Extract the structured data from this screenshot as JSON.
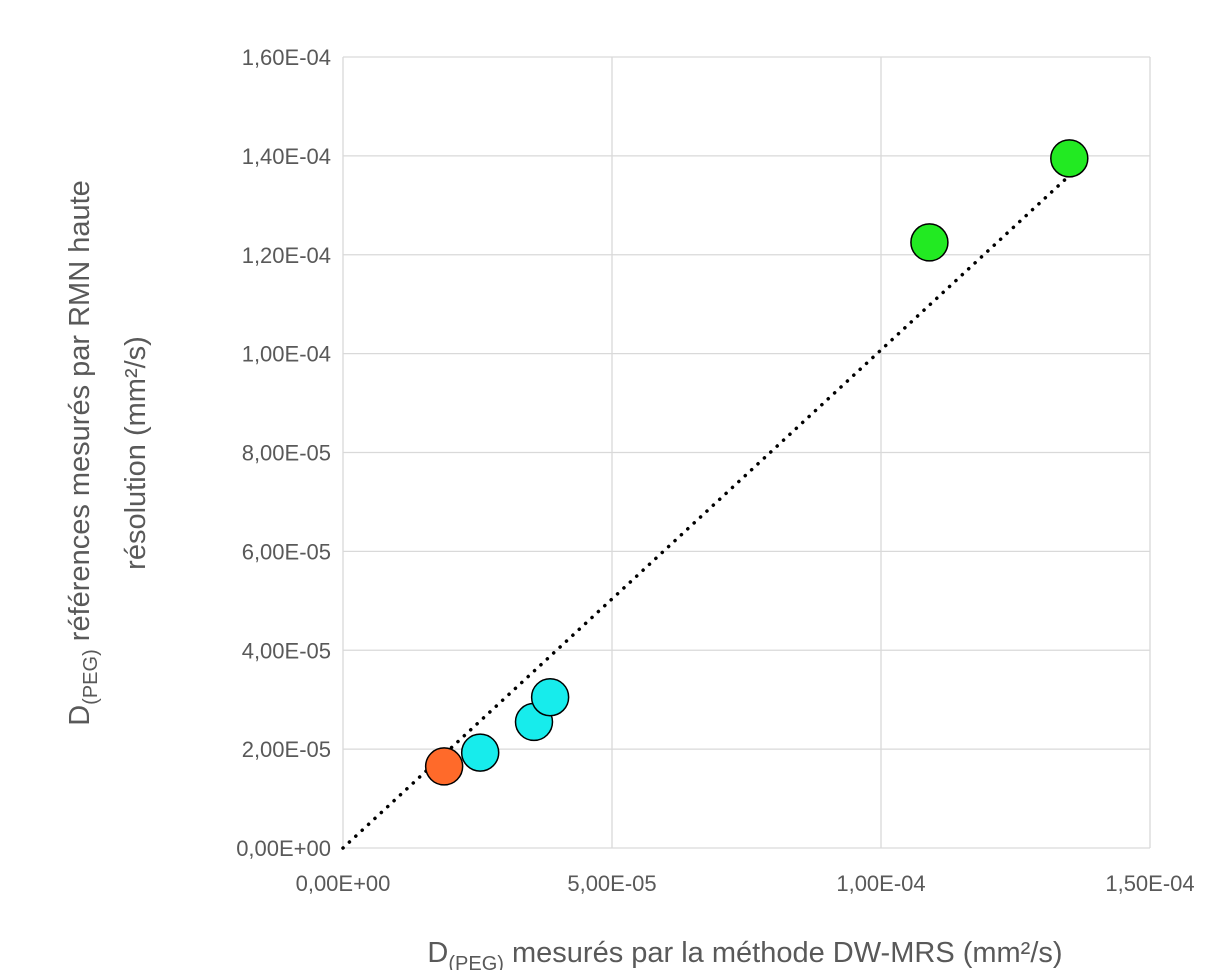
{
  "chart_data": {
    "type": "scatter",
    "xlabel": {
      "prefix": "D",
      "sub": "(PEG)",
      "rest": " mesurés par la méthode DW-MRS (mm²/s)"
    },
    "ylabel": {
      "line1_prefix": "D",
      "line1_sub": "(PEG)",
      "line1_rest": " références mesurés par RMN haute",
      "line2": "résolution (mm²/s)"
    },
    "xlim": [
      0,
      0.00015
    ],
    "ylim": [
      0,
      0.00016
    ],
    "x_ticks": [
      0,
      5e-05,
      0.0001,
      0.00015
    ],
    "x_tick_labels": [
      "0,00E+00",
      "5,00E-05",
      "1,00E-04",
      "1,50E-04"
    ],
    "y_ticks": [
      0,
      2e-05,
      4e-05,
      6e-05,
      8e-05,
      0.0001,
      0.00012,
      0.00014,
      0.00016
    ],
    "y_tick_labels": [
      "0,00E+00",
      "2,00E-05",
      "4,00E-05",
      "6,00E-05",
      "8,00E-05",
      "1,00E-04",
      "1,20E-04",
      "1,40E-04",
      "1,60E-04"
    ],
    "grid": true,
    "legend": "none",
    "points": [
      {
        "x": 1.88e-05,
        "y": 1.65e-05,
        "color": "#ff6a2a"
      },
      {
        "x": 2.55e-05,
        "y": 1.93e-05,
        "color": "#17ecec"
      },
      {
        "x": 3.55e-05,
        "y": 2.55e-05,
        "color": "#17ecec"
      },
      {
        "x": 3.85e-05,
        "y": 3.05e-05,
        "color": "#17ecec"
      },
      {
        "x": 0.000109,
        "y": 0.0001225,
        "color": "#22ea22"
      },
      {
        "x": 0.000135,
        "y": 0.0001395,
        "color": "#22ea22"
      }
    ],
    "trendline": {
      "style": "dotted",
      "color": "#000000",
      "from": [
        0,
        0
      ],
      "to": [
        0.000135,
        0.000136
      ]
    }
  }
}
